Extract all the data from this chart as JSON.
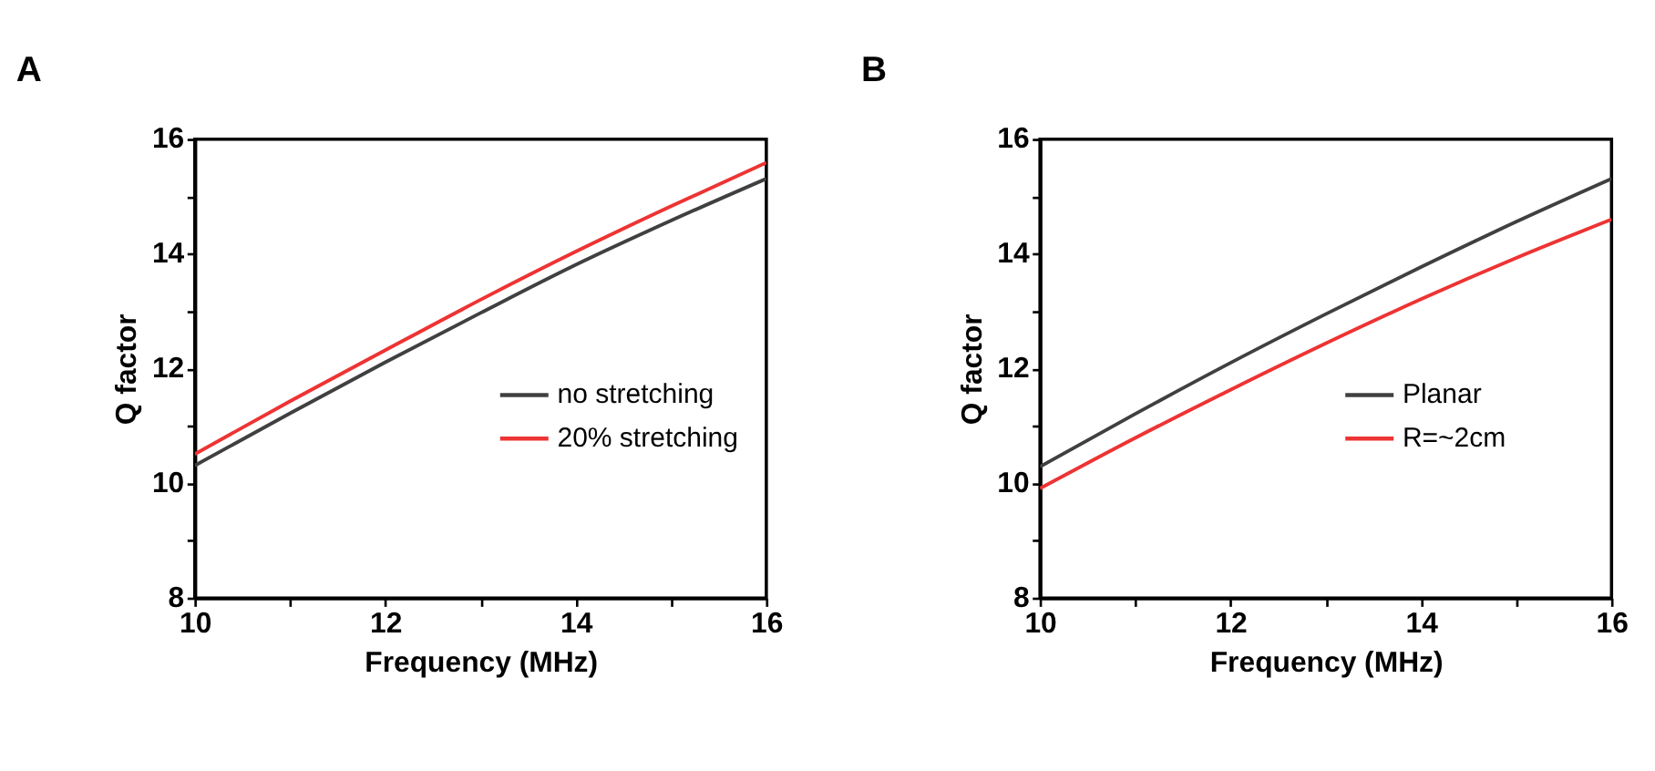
{
  "chart_data": [
    {
      "type": "line",
      "title": "A",
      "xlabel": "Frequency (MHz)",
      "ylabel": "Q factor",
      "x": [
        10,
        11,
        12,
        13,
        14,
        15,
        16
      ],
      "series": [
        {
          "name": "no stretching",
          "color": "#404040",
          "values": [
            10.31,
            11.22,
            12.11,
            12.97,
            13.81,
            14.58,
            15.31
          ]
        },
        {
          "name": "20% stretching",
          "color": "#ee3333",
          "values": [
            10.51,
            11.43,
            12.32,
            13.2,
            14.04,
            14.83,
            15.59
          ]
        }
      ],
      "xlim": [
        10,
        16
      ],
      "ylim": [
        8,
        16
      ],
      "xticks": [
        10,
        {
          "value": 11,
          "label": null
        },
        12,
        {
          "value": 13,
          "label": null
        },
        14,
        {
          "value": 15,
          "label": null
        },
        16
      ],
      "yticks": [
        8,
        {
          "value": 9,
          "label": null
        },
        10,
        {
          "value": 11,
          "label": null
        },
        12,
        {
          "value": 13,
          "label": null
        },
        14,
        {
          "value": 15,
          "label": null
        },
        16
      ],
      "legend": "right",
      "grid": false,
      "marker": "none",
      "line_style": "solid"
    },
    {
      "type": "line",
      "title": "B",
      "xlabel": "Frequency (MHz)",
      "ylabel": "Q factor",
      "x": [
        10,
        11,
        12,
        13,
        14,
        15,
        16
      ],
      "series": [
        {
          "name": "Planar",
          "color": "#404040",
          "values": [
            10.29,
            11.21,
            12.1,
            12.95,
            13.77,
            14.56,
            15.31
          ]
        },
        {
          "name": "R=~2cm",
          "color": "#ee3333",
          "values": [
            9.91,
            10.79,
            11.63,
            12.44,
            13.21,
            13.93,
            14.6
          ]
        }
      ],
      "xlim": [
        10,
        16
      ],
      "ylim": [
        8,
        16
      ],
      "xticks": [
        10,
        {
          "value": 11,
          "label": null
        },
        12,
        {
          "value": 13,
          "label": null
        },
        14,
        {
          "value": 15,
          "label": null
        },
        16
      ],
      "yticks": [
        8,
        {
          "value": 9,
          "label": null
        },
        10,
        {
          "value": 11,
          "label": null
        },
        12,
        {
          "value": 13,
          "label": null
        },
        14,
        {
          "value": 15,
          "label": null
        },
        16
      ],
      "legend": "right",
      "grid": false,
      "marker": "none",
      "line_style": "solid"
    }
  ]
}
